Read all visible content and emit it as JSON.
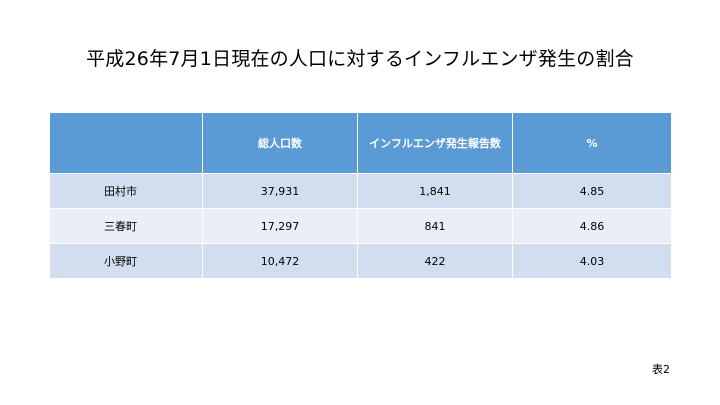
{
  "title": "平成26年7月1日現在の人口に対するインフルエンザ発生の割合",
  "table": {
    "headers": [
      "",
      "総人口数",
      "インフルエンザ発生報告数",
      "%"
    ],
    "rows": [
      [
        "田村市",
        "37,931",
        "1,841",
        "4.85"
      ],
      [
        "三春町",
        "17,297",
        "841",
        "4.86"
      ],
      [
        "小野町",
        "10,472",
        "422",
        "4.03"
      ]
    ]
  },
  "caption_label": "表2"
}
